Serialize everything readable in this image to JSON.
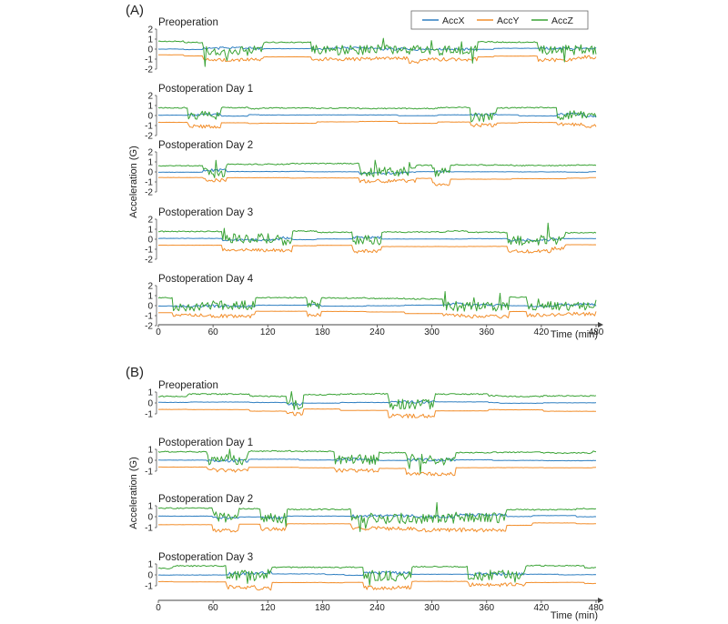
{
  "chart_data": [
    {
      "type": "line",
      "panel_label": "(A)",
      "ylabel": "Acceleration (G)",
      "xlabel": "Time (min)",
      "xlim": [
        0,
        480
      ],
      "x_ticks": [
        0,
        60,
        120,
        180,
        240,
        300,
        360,
        420,
        480
      ],
      "y_ticks": [
        2,
        1,
        0,
        -1,
        -2
      ],
      "ylim": [
        -2,
        2
      ],
      "legend": {
        "position": "top-right",
        "entries": [
          "AccX",
          "AccY",
          "AccZ"
        ]
      },
      "series_names": [
        "AccX",
        "AccY",
        "AccZ"
      ],
      "subplots": [
        {
          "title": "Preoperation",
          "seed": 11
        },
        {
          "title": "Postoperation Day 1",
          "seed": 23
        },
        {
          "title": "Postoperation Day 2",
          "seed": 37
        },
        {
          "title": "Postoperation Day 3",
          "seed": 41
        },
        {
          "title": "Postoperation Day 4",
          "seed": 53
        }
      ]
    },
    {
      "type": "line",
      "panel_label": "(B)",
      "ylabel": "Acceleration (G)",
      "xlabel": "Time (min)",
      "xlim": [
        0,
        480
      ],
      "x_ticks": [
        0,
        60,
        120,
        180,
        240,
        300,
        360,
        420,
        480
      ],
      "y_ticks": [
        1,
        0,
        -1
      ],
      "ylim": [
        -1.4,
        1.4
      ],
      "series_names": [
        "AccX",
        "AccY",
        "AccZ"
      ],
      "subplots": [
        {
          "title": "Preoperation",
          "seed": 67
        },
        {
          "title": "Postoperation Day 1",
          "seed": 71
        },
        {
          "title": "Postoperation Day 2",
          "seed": 83
        },
        {
          "title": "Postoperation Day 3",
          "seed": 97
        }
      ]
    }
  ],
  "colors": {
    "AccX": "#2f7fc1",
    "AccY": "#f28e2b",
    "AccZ": "#3aa335"
  }
}
